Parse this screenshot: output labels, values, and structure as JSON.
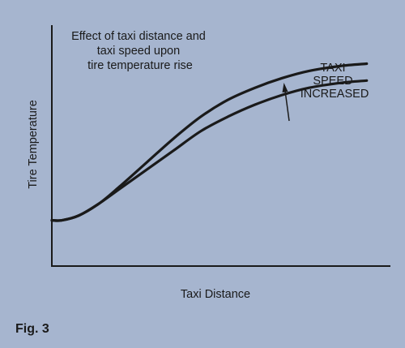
{
  "chart_data": {
    "type": "line",
    "title_lines": [
      "Effect of taxi distance and",
      "taxi speed upon",
      "tire temperature rise"
    ],
    "xlabel": "Taxi Distance",
    "ylabel": "Tire Temperature",
    "xlim": [
      0,
      100
    ],
    "ylim": [
      0,
      100
    ],
    "grid": false,
    "annotation": {
      "lines": [
        "TAXI",
        "SPEED",
        "INCREASED"
      ],
      "arrow": "up"
    },
    "series": [
      {
        "x": [
          0,
          3,
          8,
          14,
          20,
          28,
          36,
          44,
          52,
          60,
          68,
          76,
          85,
          93
        ],
        "y": [
          19,
          19,
          21,
          26,
          33,
          43,
          53,
          62,
          69,
          74,
          78,
          81,
          83,
          84
        ]
      },
      {
        "x": [
          0,
          3,
          8,
          14,
          20,
          28,
          36,
          44,
          52,
          60,
          68,
          76,
          85,
          93
        ],
        "y": [
          19,
          19,
          21,
          26,
          32,
          40,
          48,
          56,
          62,
          67,
          71,
          74,
          76,
          77
        ]
      }
    ]
  },
  "figure_label": "Fig. 3",
  "colors": {
    "background": "#a6b5cf",
    "line": "#1a1a1a"
  }
}
